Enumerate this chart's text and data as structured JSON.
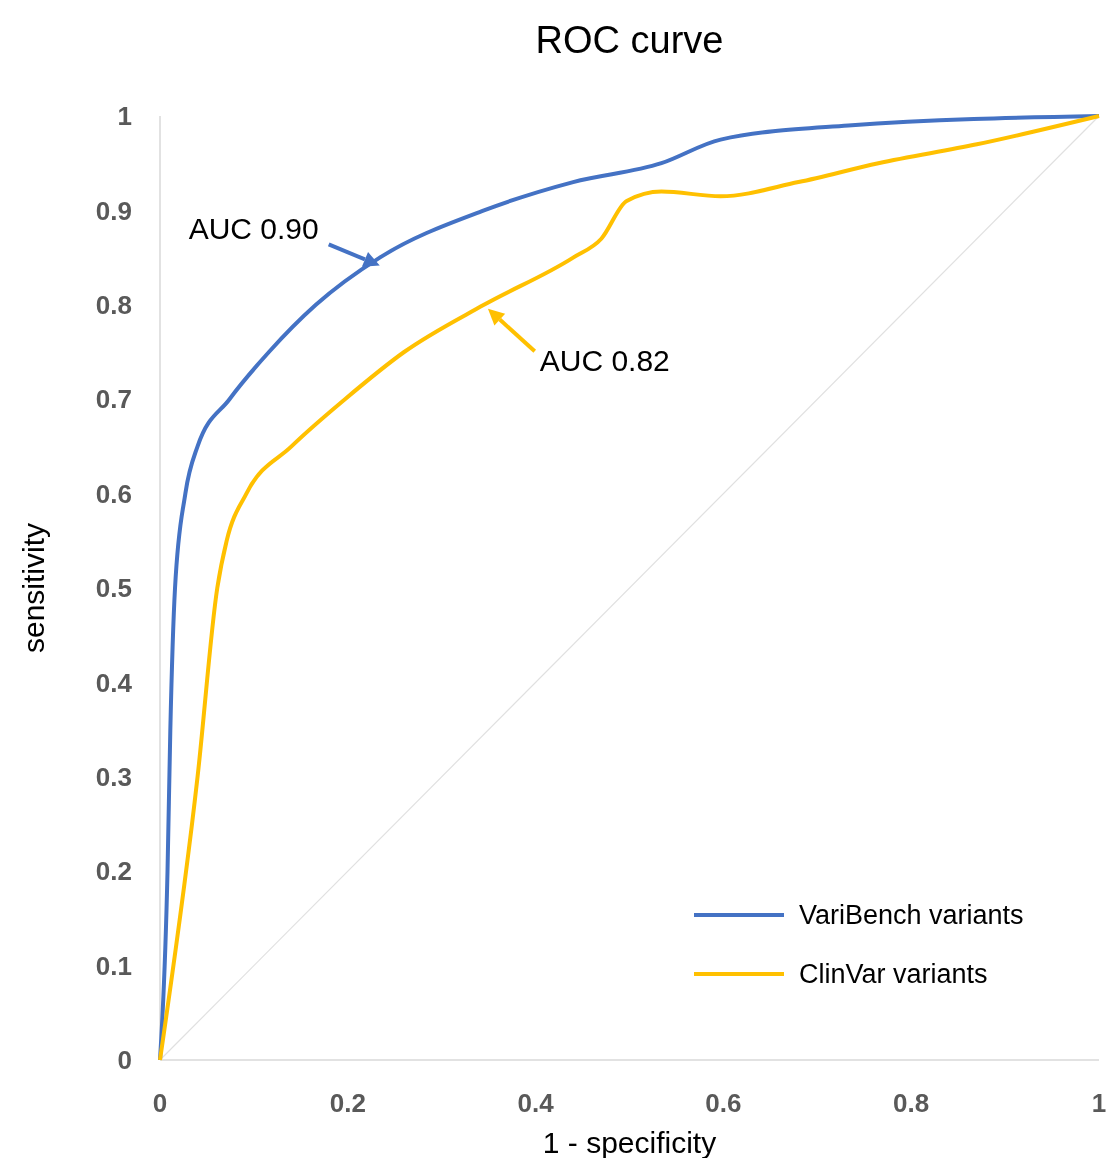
{
  "chart_data": {
    "type": "line",
    "title": "ROC curve",
    "xlabel": "1 - specificity",
    "ylabel": "sensitivity",
    "xlim": [
      0,
      1
    ],
    "ylim": [
      0,
      1
    ],
    "xticks": [
      0,
      0.2,
      0.4,
      0.6,
      0.8,
      1
    ],
    "yticks": [
      0,
      0.1,
      0.2,
      0.3,
      0.4,
      0.5,
      0.6,
      0.7,
      0.8,
      0.9,
      1
    ],
    "grid": false,
    "legend": "bottom right",
    "line_style": "solid",
    "series": [
      {
        "name": "VariBench variants",
        "color": "#4472c4",
        "x": [
          0,
          0.008,
          0.011,
          0.016,
          0.027,
          0.04,
          0.074,
          0.116,
          0.166,
          0.234,
          0.345,
          0.44,
          0.534,
          0.597,
          0.733,
          1
        ],
        "values": [
          0,
          0.2,
          0.35,
          0.5,
          0.6,
          0.65,
          0.7,
          0.75,
          0.8,
          0.85,
          0.9,
          0.93,
          0.95,
          0.975,
          0.99,
          1
        ]
      },
      {
        "name": "ClinVar variants",
        "color": "#ffc000",
        "x": [
          0,
          0.04,
          0.061,
          0.071,
          0.092,
          0.14,
          0.197,
          0.26,
          0.345,
          0.44,
          0.47,
          0.497,
          0.534,
          0.597,
          0.68,
          0.765,
          0.87,
          1
        ],
        "values": [
          0,
          0.3,
          0.5,
          0.55,
          0.6,
          0.65,
          0.7,
          0.75,
          0.8,
          0.85,
          0.87,
          0.91,
          0.92,
          0.915,
          0.93,
          0.95,
          0.97,
          1
        ]
      },
      {
        "color": "#e0e0e0",
        "x": [
          0,
          1
        ],
        "values": [
          0,
          1
        ]
      }
    ],
    "annotations": [
      "AUC 0.90",
      "AUC 0.82"
    ]
  }
}
